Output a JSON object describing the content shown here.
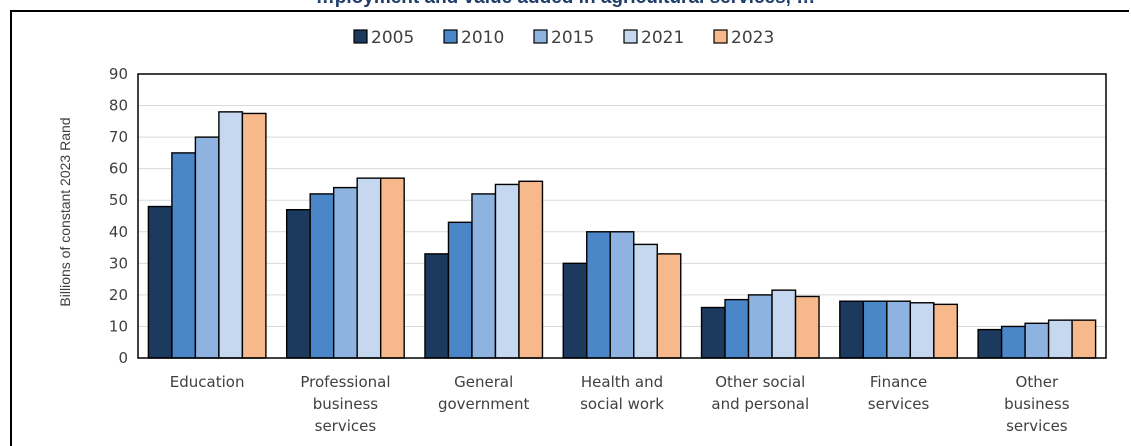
{
  "header": {
    "title_visible": "…ployment and value added in agricultural services, …"
  },
  "chart_data": {
    "type": "bar",
    "ylabel": "Billions of constant 2023 Rand",
    "xlabel": "",
    "ylim": [
      0,
      90
    ],
    "yticks": [
      0,
      10,
      20,
      30,
      40,
      50,
      60,
      70,
      80,
      90
    ],
    "grid": true,
    "legend_position": "top",
    "categories": [
      [
        "Education"
      ],
      [
        "Professional",
        "business",
        "services"
      ],
      [
        "General",
        "government"
      ],
      [
        "Health and",
        "social work"
      ],
      [
        "Other social",
        "and personal"
      ],
      [
        "Finance",
        "services"
      ],
      [
        "Other",
        "business",
        "services"
      ]
    ],
    "series": [
      {
        "name": "2005",
        "color": "#1b3a5e",
        "values": [
          48,
          47,
          33,
          30,
          16,
          18,
          9
        ]
      },
      {
        "name": "2010",
        "color": "#4a86c8",
        "values": [
          65,
          52,
          43,
          40,
          18.5,
          18,
          10
        ]
      },
      {
        "name": "2015",
        "color": "#8fb3e0",
        "values": [
          70,
          54,
          52,
          40,
          20,
          18,
          11
        ]
      },
      {
        "name": "2021",
        "color": "#c5d8ef",
        "values": [
          78,
          57,
          55,
          36,
          21.5,
          17.5,
          12
        ]
      },
      {
        "name": "2023",
        "color": "#f7b98c",
        "values": [
          77.5,
          57,
          56,
          33,
          19.5,
          17,
          12
        ]
      }
    ]
  }
}
